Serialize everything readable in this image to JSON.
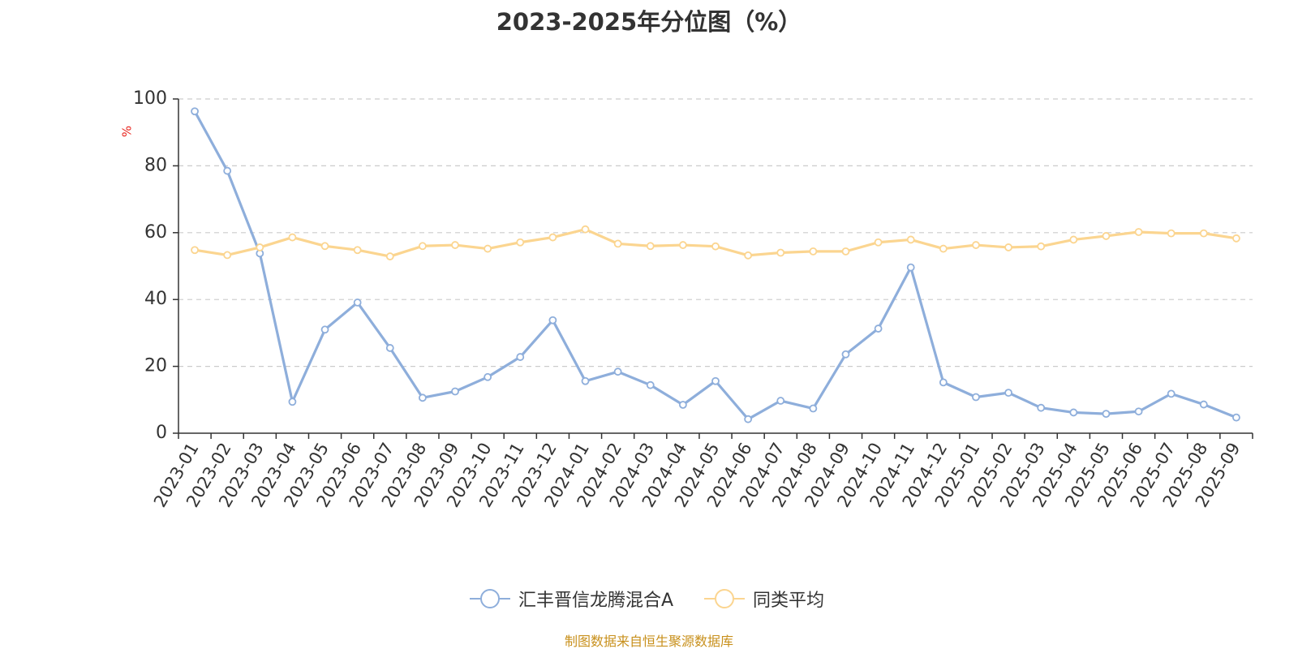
{
  "chart_data": {
    "type": "line",
    "title": "2023-2025年分位图（%）",
    "ylabel": "%",
    "xlabel": "",
    "ylim": [
      0,
      100
    ],
    "yticks": [
      0,
      20,
      40,
      60,
      80,
      100
    ],
    "grid": true,
    "legend_position": "bottom",
    "categories": [
      "2023-01",
      "2023-02",
      "2023-03",
      "2023-04",
      "2023-05",
      "2023-06",
      "2023-07",
      "2023-08",
      "2023-09",
      "2023-10",
      "2023-11",
      "2023-12",
      "2024-01",
      "2024-02",
      "2024-03",
      "2024-04",
      "2024-05",
      "2024-06",
      "2024-07",
      "2024-08",
      "2024-09",
      "2024-10",
      "2024-11",
      "2024-12",
      "2025-01",
      "2025-02",
      "2025-03",
      "2025-04",
      "2025-05",
      "2025-06",
      "2025-07",
      "2025-08",
      "2025-09"
    ],
    "series": [
      {
        "name": "汇丰晋信龙腾混合A",
        "color": "#8eaedb",
        "values": [
          96.3,
          78.5,
          53.8,
          9.4,
          31.0,
          39.1,
          25.5,
          10.6,
          12.5,
          16.8,
          22.8,
          33.8,
          15.6,
          18.4,
          14.4,
          8.5,
          15.6,
          4.2,
          9.7,
          7.4,
          23.6,
          31.3,
          49.6,
          15.2,
          10.8,
          12.1,
          7.6,
          6.2,
          5.8,
          6.5,
          11.8,
          8.6,
          4.7
        ]
      },
      {
        "name": "同类平均",
        "color": "#fbd590",
        "values": [
          54.8,
          53.3,
          55.6,
          58.6,
          56.0,
          54.8,
          52.9,
          56.0,
          56.3,
          55.2,
          57.1,
          58.6,
          61.0,
          56.7,
          56.0,
          56.3,
          55.9,
          53.2,
          54.0,
          54.4,
          54.4,
          57.1,
          57.9,
          55.2,
          56.3,
          55.6,
          55.9,
          57.9,
          59.0,
          60.2,
          59.8,
          59.8,
          58.3
        ]
      }
    ]
  },
  "source_note": "制图数据来自恒生聚源数据库"
}
